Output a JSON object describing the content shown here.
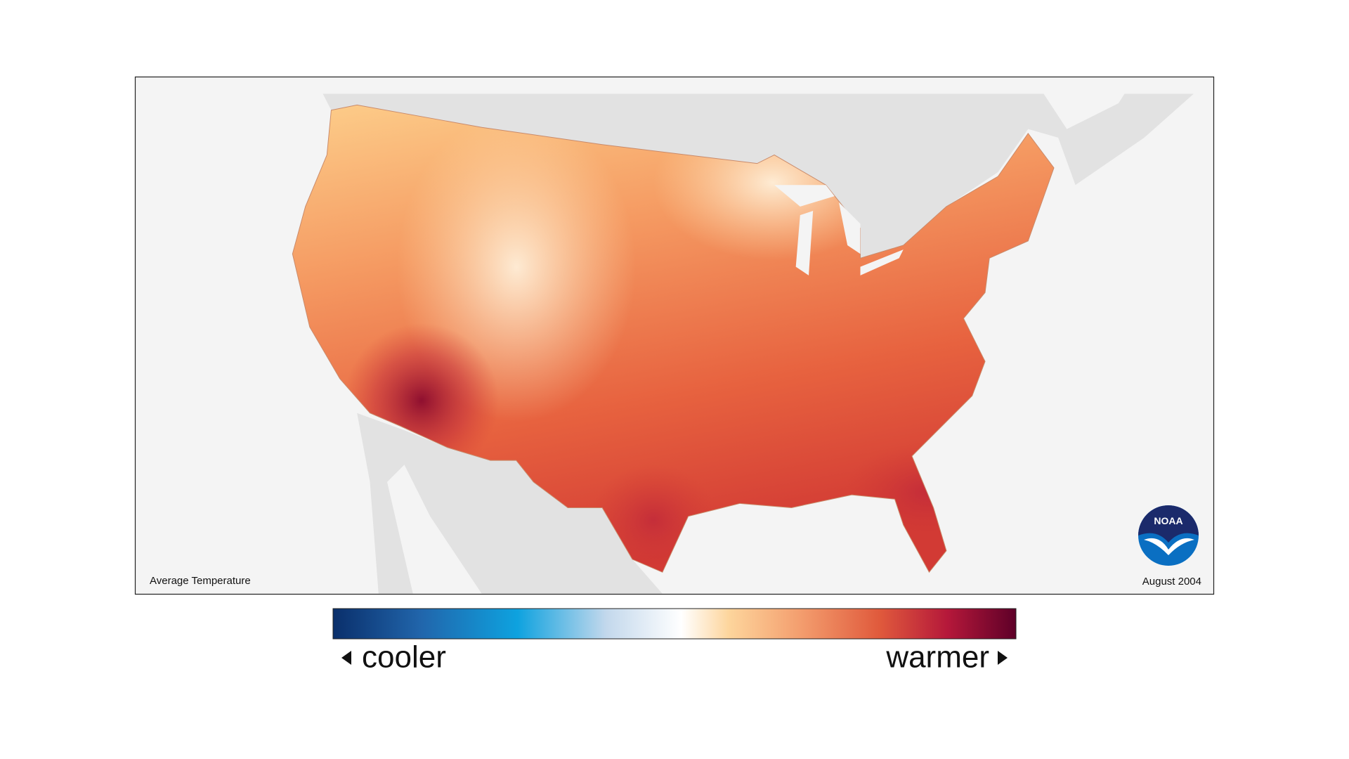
{
  "map": {
    "title": "Average Temperature",
    "date": "August 2004",
    "logo": "NOAA"
  },
  "legend": {
    "low": "cooler",
    "high": "warmer"
  }
}
